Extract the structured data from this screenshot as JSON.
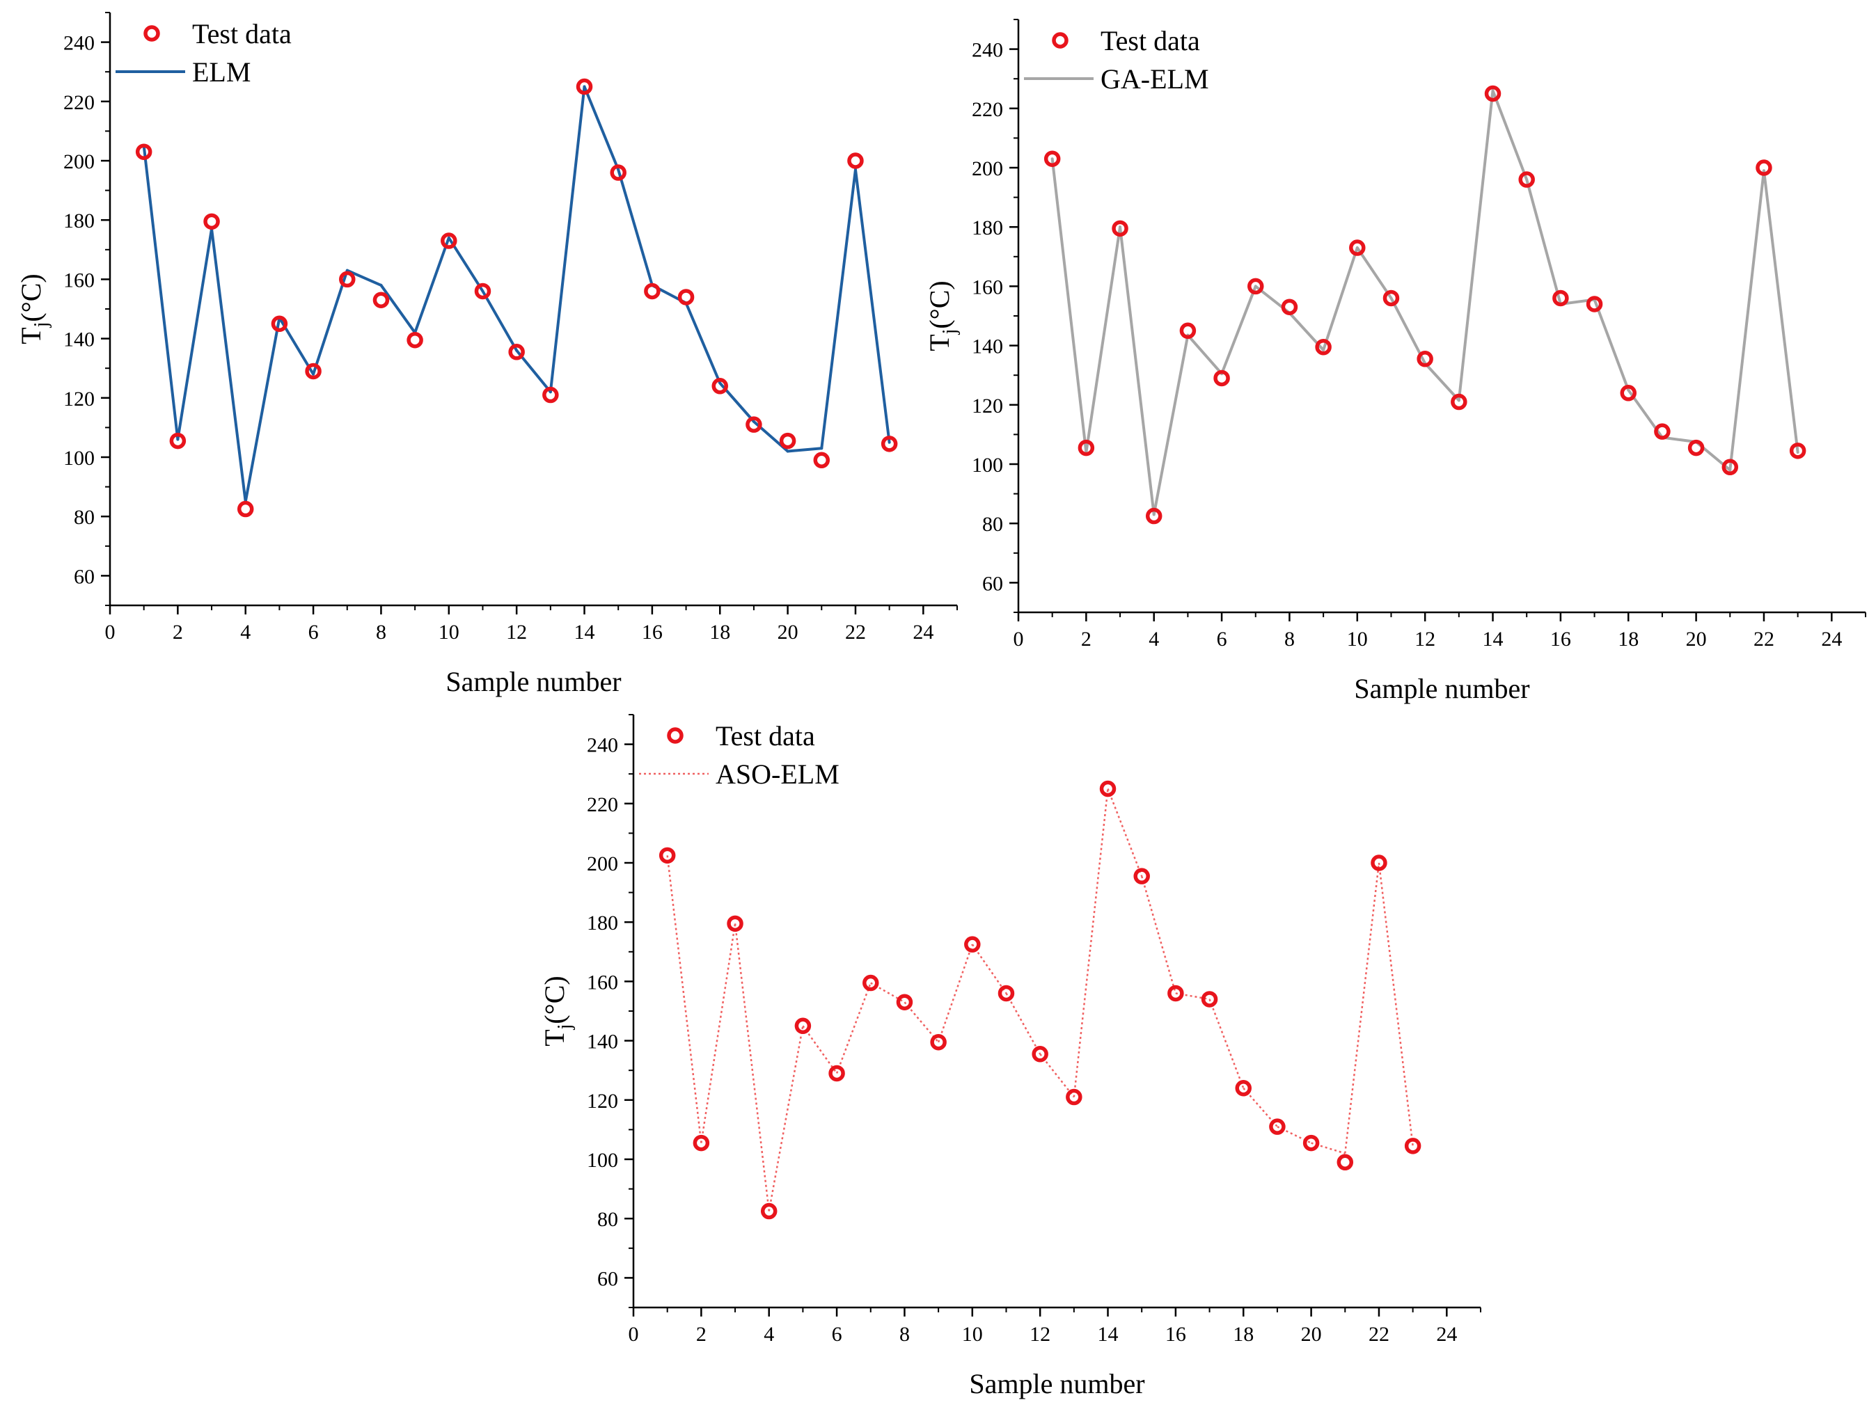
{
  "chart_data": [
    {
      "type": "line",
      "id": "elm",
      "xlabel": "Sample number",
      "ylabel": "T",
      "ylabel_sub": "j",
      "ylabel_unit": "(°C)",
      "xlim": [
        0,
        25
      ],
      "ylim": [
        50,
        250
      ],
      "xticks": [
        0,
        2,
        4,
        6,
        8,
        10,
        12,
        14,
        16,
        18,
        20,
        22,
        24
      ],
      "yticks": [
        60,
        80,
        100,
        120,
        140,
        160,
        180,
        200,
        220,
        240
      ],
      "x": [
        1,
        2,
        3,
        4,
        5,
        6,
        7,
        8,
        9,
        10,
        11,
        12,
        13,
        14,
        15,
        16,
        17,
        18,
        19,
        20,
        21,
        22,
        23
      ],
      "series": [
        {
          "name": "Test data",
          "kind": "scatter",
          "color": "#e8141c",
          "values": [
            203,
            105.5,
            179.5,
            82.5,
            145,
            129,
            160,
            153,
            139.5,
            173,
            156,
            135.5,
            121,
            225,
            196,
            156,
            154,
            124,
            111,
            105.5,
            99,
            200,
            104.5
          ]
        },
        {
          "name": "ELM",
          "kind": "line",
          "color": "#1f5fa0",
          "dash": "solid",
          "values": [
            205,
            106,
            177,
            85,
            147,
            128,
            163,
            158,
            142,
            174,
            156,
            136,
            122,
            225,
            197,
            158,
            152,
            125,
            112,
            102,
            103,
            197,
            105
          ]
        }
      ],
      "legend": [
        "Test data",
        "ELM"
      ],
      "legend_position": "top-left"
    },
    {
      "type": "line",
      "id": "ga-elm",
      "xlabel": "Sample number",
      "ylabel": "T",
      "ylabel_sub": "j",
      "ylabel_unit": "(°C)",
      "xlim": [
        0,
        25
      ],
      "ylim": [
        50,
        250
      ],
      "xticks": [
        0,
        2,
        4,
        6,
        8,
        10,
        12,
        14,
        16,
        18,
        20,
        22,
        24
      ],
      "yticks": [
        60,
        80,
        100,
        120,
        140,
        160,
        180,
        200,
        220,
        240
      ],
      "x": [
        1,
        2,
        3,
        4,
        5,
        6,
        7,
        8,
        9,
        10,
        11,
        12,
        13,
        14,
        15,
        16,
        17,
        18,
        19,
        20,
        21,
        22,
        23
      ],
      "series": [
        {
          "name": "Test data",
          "kind": "scatter",
          "color": "#e8141c",
          "values": [
            203,
            105.5,
            179.5,
            82.5,
            145,
            129,
            160,
            153,
            139.5,
            173,
            156,
            135.5,
            121,
            225,
            196,
            156,
            154,
            124,
            111,
            105.5,
            99,
            200,
            104.5
          ]
        },
        {
          "name": "GA-ELM",
          "kind": "line",
          "color": "#a6a6a6",
          "dash": "solid",
          "values": [
            203,
            104,
            180,
            83,
            143.5,
            130.5,
            160,
            151,
            138.5,
            173,
            156,
            134,
            121.5,
            226,
            196,
            154,
            155.5,
            125,
            109,
            107.5,
            98,
            199,
            104
          ]
        }
      ],
      "legend": [
        "Test data",
        "GA-ELM"
      ],
      "legend_position": "top-left"
    },
    {
      "type": "line",
      "id": "aso-elm",
      "xlabel": "Sample number",
      "ylabel": "T",
      "ylabel_sub": "j",
      "ylabel_unit": "(°C)",
      "xlim": [
        0,
        25
      ],
      "ylim": [
        50,
        250
      ],
      "xticks": [
        0,
        2,
        4,
        6,
        8,
        10,
        12,
        14,
        16,
        18,
        20,
        22,
        24
      ],
      "yticks": [
        60,
        80,
        100,
        120,
        140,
        160,
        180,
        200,
        220,
        240
      ],
      "x": [
        1,
        2,
        3,
        4,
        5,
        6,
        7,
        8,
        9,
        10,
        11,
        12,
        13,
        14,
        15,
        16,
        17,
        18,
        19,
        20,
        21,
        22,
        23
      ],
      "series": [
        {
          "name": "Test data",
          "kind": "scatter",
          "color": "#e8141c",
          "values": [
            202.5,
            105.5,
            179.5,
            82.5,
            145,
            129,
            159.5,
            153,
            139.5,
            172.5,
            156,
            135.5,
            121,
            225,
            195.5,
            156,
            154,
            124,
            111,
            105.5,
            99,
            200,
            104.5
          ]
        },
        {
          "name": "ASO-ELM",
          "kind": "line",
          "color": "#f06060",
          "dash": "dotted",
          "values": [
            202.5,
            105.5,
            179.5,
            82.5,
            145,
            129,
            159.5,
            153,
            139.5,
            172.5,
            156,
            135.5,
            121,
            225,
            195.5,
            156,
            154,
            124,
            111,
            105.5,
            102,
            200,
            104.5
          ]
        }
      ],
      "legend": [
        "Test data",
        "ASO-ELM"
      ],
      "legend_position": "top-left"
    }
  ]
}
